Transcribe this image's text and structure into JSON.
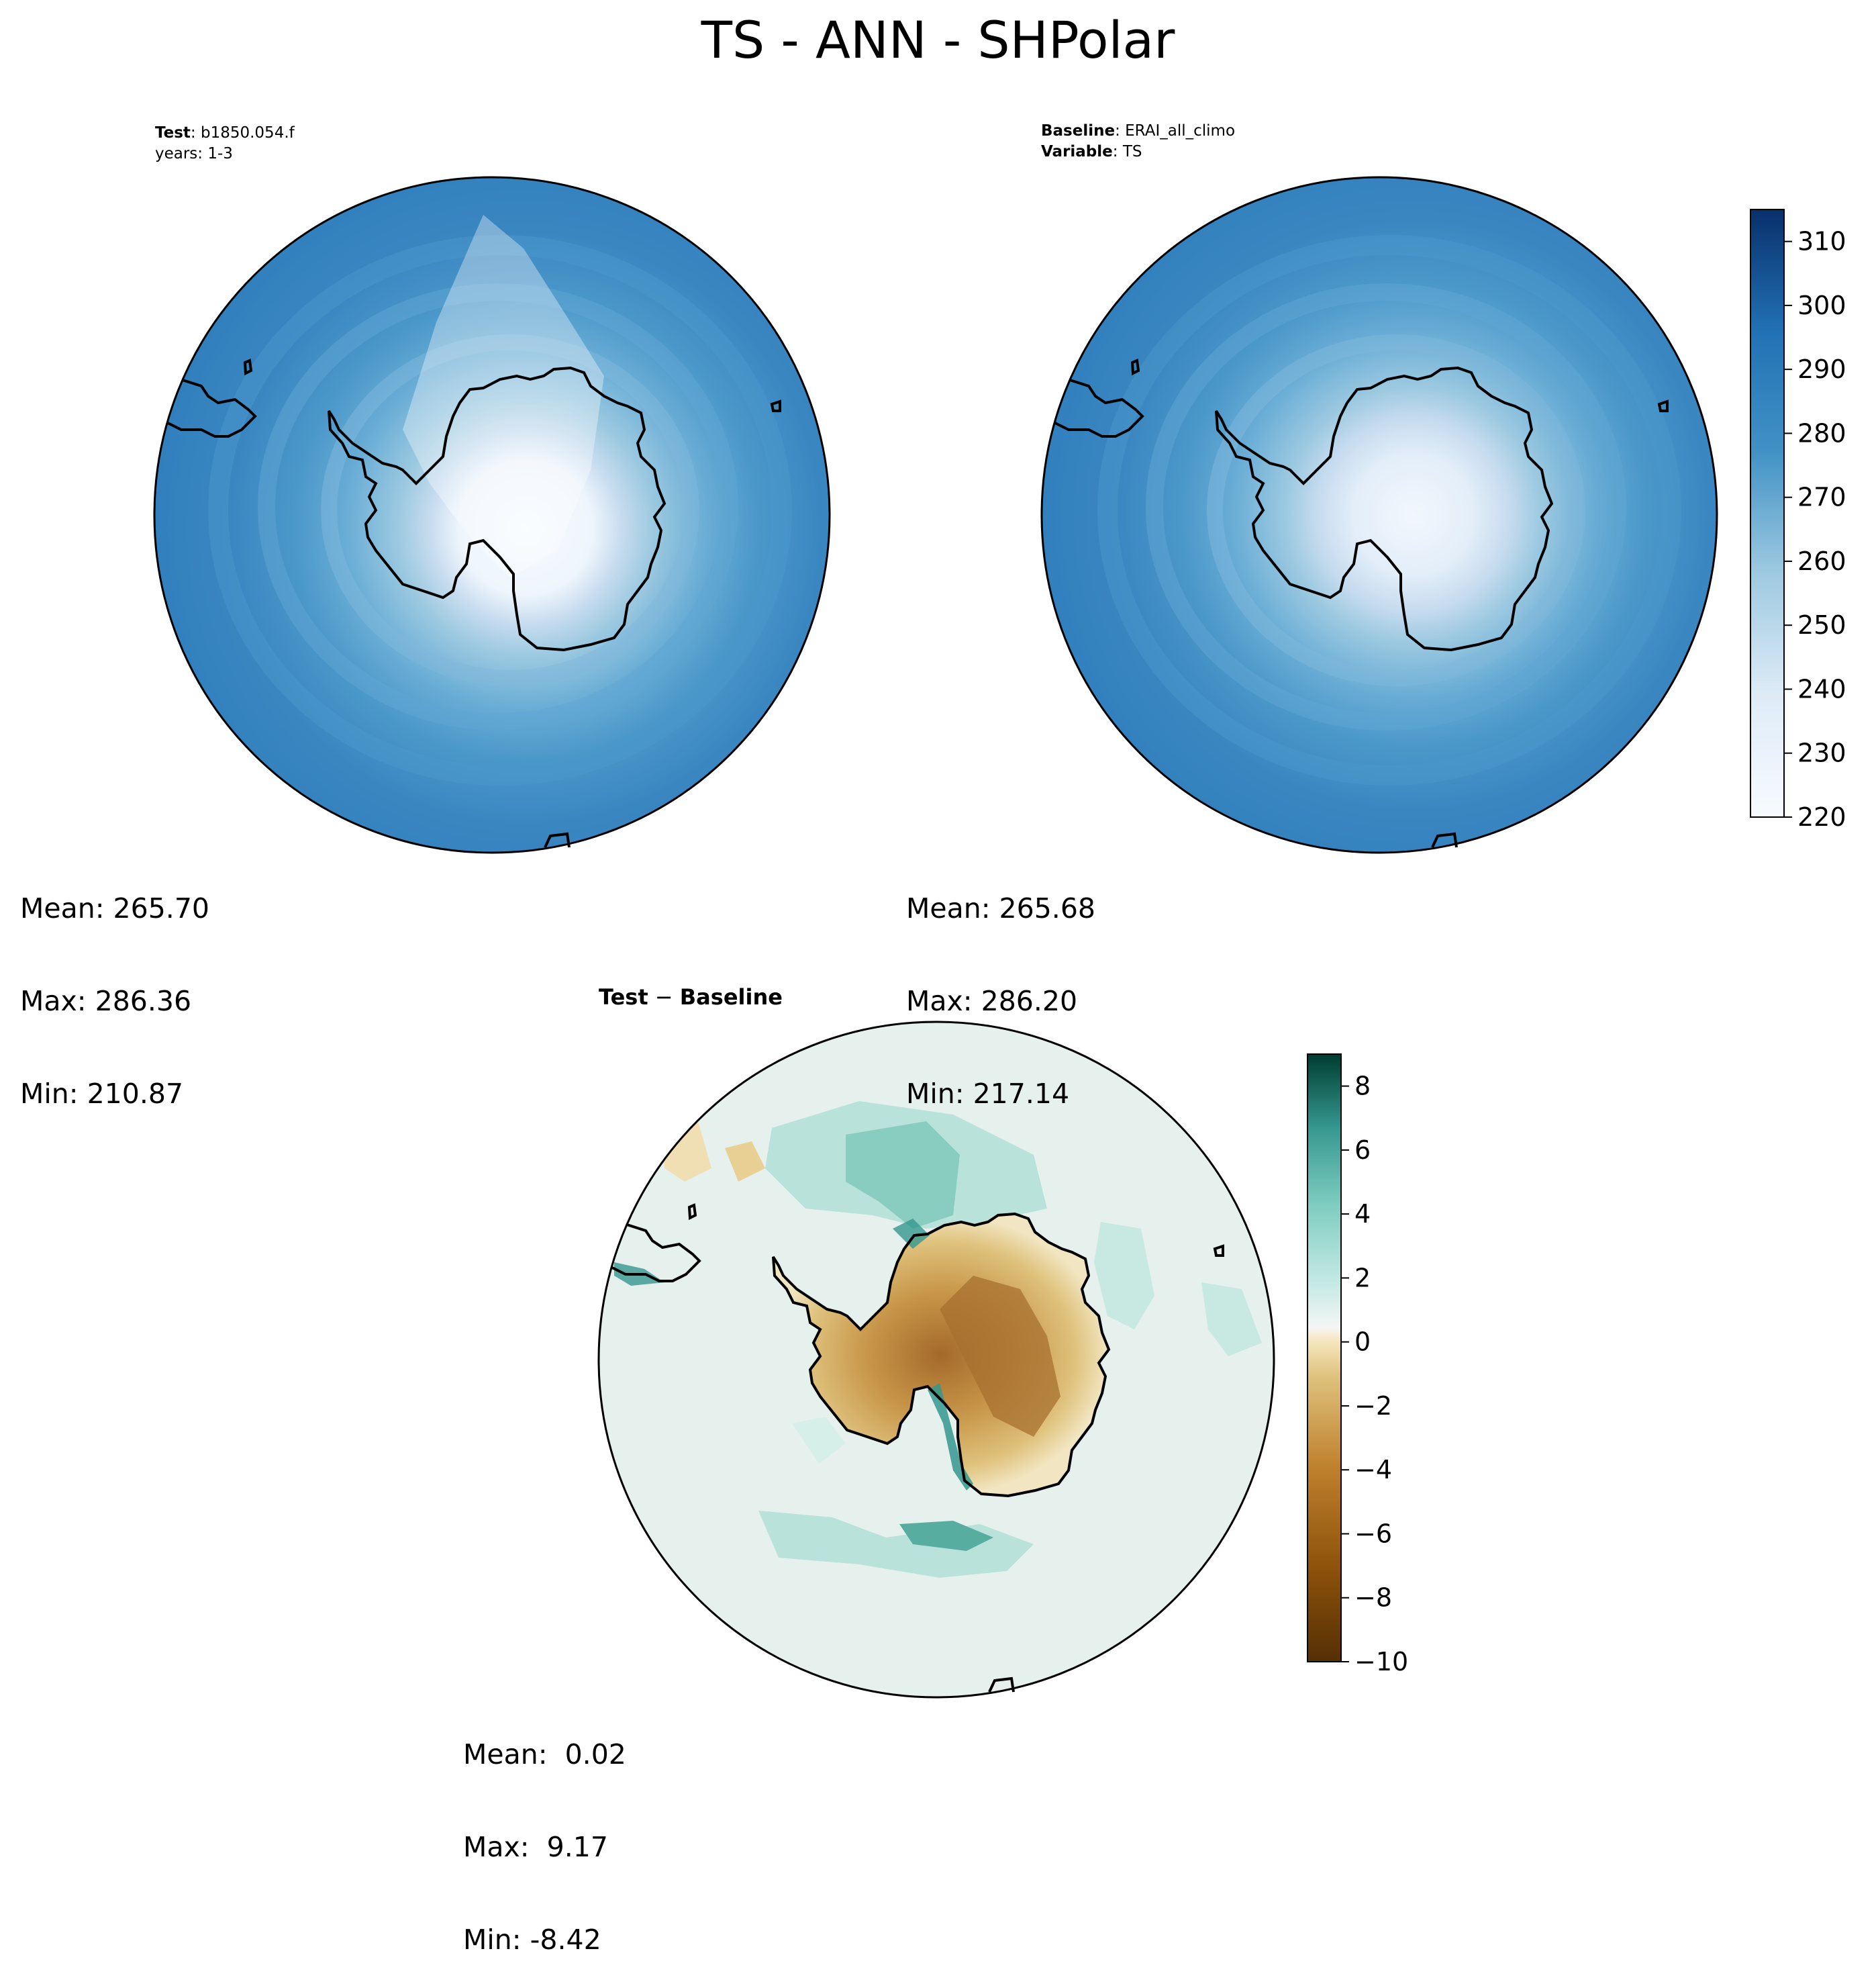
{
  "figure_title": "TS - ANN - SHPolar",
  "test_panel": {
    "label_bold": "Test",
    "label_value": ": b1850.054.f",
    "years": "years: 1-3",
    "stats": [
      "Mean: 265.70",
      "Max: 286.36",
      "Min: 210.87"
    ]
  },
  "baseline_panel": {
    "line1_bold": "Baseline",
    "line1_value": ": ERAI_all_climo",
    "line2_bold": "Variable",
    "line2_value": ": TS",
    "stats": [
      "Mean: 265.68",
      "Max: 286.20",
      "Min: 217.14"
    ]
  },
  "diff_panel": {
    "title_left": "Test",
    "title_sep": " − ",
    "title_right": "Baseline",
    "stats": [
      "Mean:  0.02",
      "Max:  9.17",
      "Min: -8.42"
    ]
  },
  "chart_data": [
    {
      "type": "heatmap",
      "name": "Test",
      "projection": "south-polar-stereographic",
      "colormap": "Blues",
      "colorbar_ticks": [
        "220",
        "230",
        "240",
        "250",
        "260",
        "270",
        "280",
        "290",
        "300",
        "310"
      ],
      "colorbar_range": [
        220,
        315
      ],
      "mean": 265.7,
      "max": 286.36,
      "min": 210.87
    },
    {
      "type": "heatmap",
      "name": "Baseline",
      "projection": "south-polar-stereographic",
      "colormap": "Blues",
      "mean": 265.68,
      "max": 286.2,
      "min": 217.14
    },
    {
      "type": "heatmap",
      "name": "Test - Baseline",
      "projection": "south-polar-stereographic",
      "colormap": "BrBG",
      "colorbar_ticks": [
        "8",
        "6",
        "4",
        "2",
        "0",
        "−2",
        "−4",
        "−6",
        "−8",
        "−10"
      ],
      "colorbar_range": [
        -10,
        9
      ],
      "mean": 0.02,
      "max": 9.17,
      "min": -8.42
    }
  ],
  "colors": {
    "ocean_outer": "#3a86c1",
    "ice_center": "#f5faff",
    "diff_positive": "#80c9bb",
    "diff_negative": "#c08a3a",
    "diff_neutral": "#e8f1ee"
  }
}
